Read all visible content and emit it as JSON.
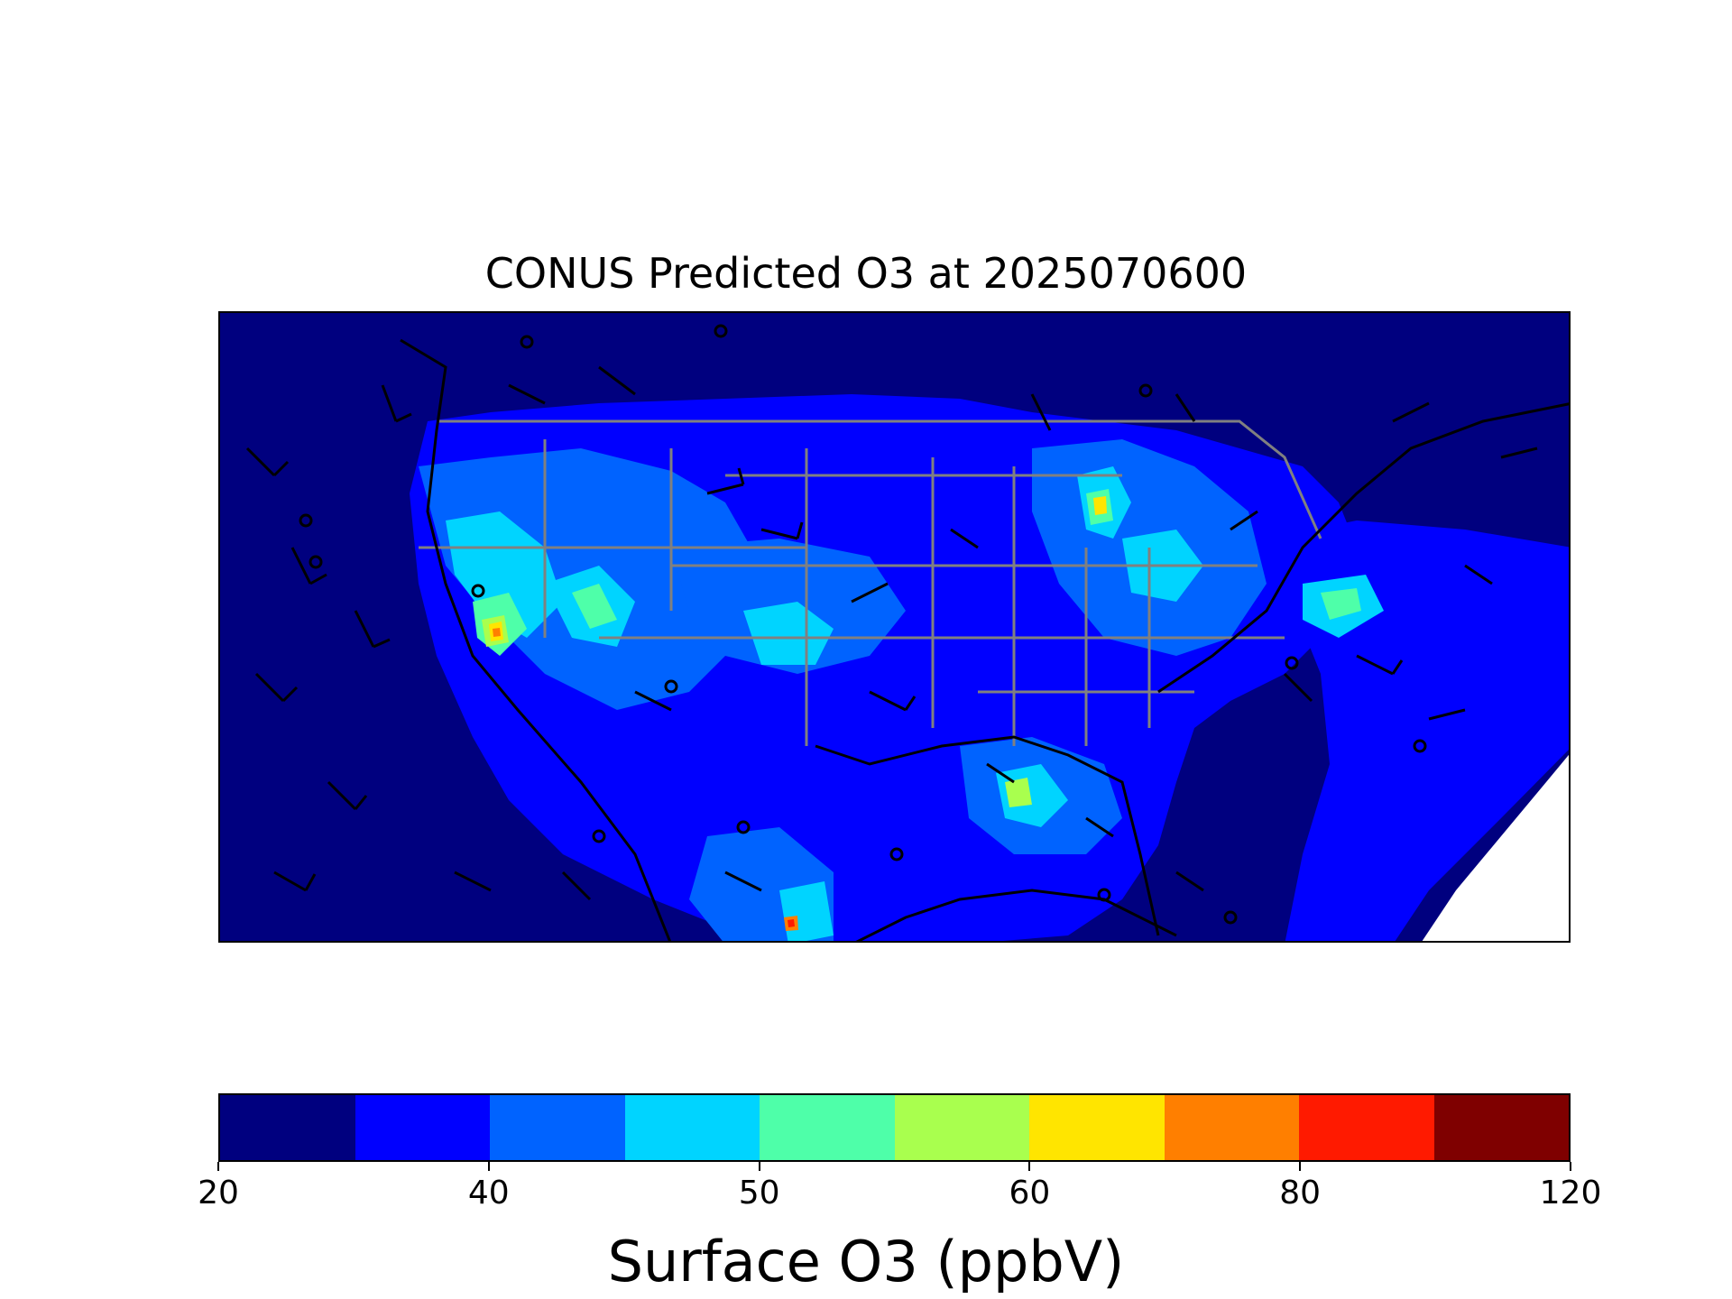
{
  "title": "CONUS Predicted O3 at 2025070600",
  "colorbar": {
    "label": "Surface O3 (ppbV)",
    "levels": [
      20,
      30,
      40,
      45,
      50,
      55,
      60,
      65,
      80,
      90,
      120
    ],
    "tick_labels": [
      "20",
      "40",
      "50",
      "60",
      "80",
      "120"
    ],
    "tick_levels": [
      20,
      40,
      50,
      60,
      80,
      120
    ],
    "colors": [
      "#00007f",
      "#0000ff",
      "#0063ff",
      "#00d4ff",
      "#4effa9",
      "#a9ff4e",
      "#ffe500",
      "#ff7f00",
      "#ff1a00",
      "#7f0000"
    ]
  },
  "map": {
    "field": "Surface O3",
    "units": "ppbV",
    "overlays": [
      "state-borders",
      "coastlines",
      "wind-barbs"
    ]
  }
}
